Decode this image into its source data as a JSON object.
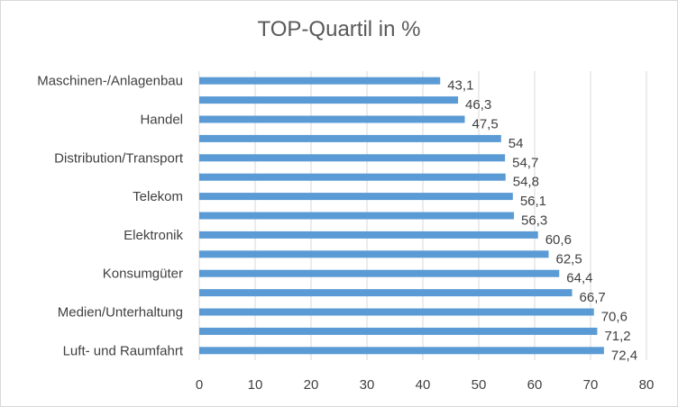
{
  "chart_data": {
    "type": "bar",
    "orientation": "horizontal",
    "title": "TOP-Quartil in %",
    "xlabel": "",
    "ylabel": "",
    "xlim": [
      0,
      80
    ],
    "x_ticks": [
      0,
      10,
      20,
      30,
      40,
      50,
      60,
      70,
      80
    ],
    "grid": "vertical",
    "legend": "none",
    "bar_color": "#5b9bd5",
    "categories": [
      "Maschinen-/Anlagenbau",
      "",
      "Handel",
      "",
      "Distribution/Transport",
      "",
      "Telekom",
      "",
      "Elektronik",
      "",
      "Konsumgüter",
      "",
      "Medien/Unterhaltung",
      "",
      "Luft- und Raumfahrt"
    ],
    "values": [
      43.1,
      46.3,
      47.5,
      54,
      54.7,
      54.8,
      56.1,
      56.3,
      60.6,
      62.5,
      64.4,
      66.7,
      70.6,
      71.2,
      72.4
    ],
    "value_labels": [
      "43,1",
      "46,3",
      "47,5",
      "54",
      "54,7",
      "54,8",
      "56,1",
      "56,3",
      "60,6",
      "62,5",
      "64,4",
      "66,7",
      "70,6",
      "71,2",
      "72,4"
    ]
  }
}
